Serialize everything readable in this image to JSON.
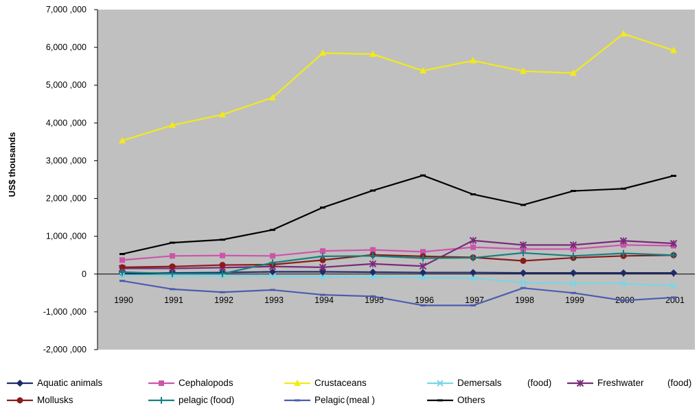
{
  "chart_data": {
    "type": "line",
    "ylabel": "US$ thousands",
    "ylim": [
      -2000000,
      7000000
    ],
    "y_ticks": [
      -2000000,
      -1000000,
      0,
      1000000,
      2000000,
      3000000,
      4000000,
      5000000,
      6000000,
      7000000
    ],
    "y_tick_labels": [
      "-2,000 ,000",
      "-1,000 ,000",
      "0",
      "1,000 ,000",
      "2,000 ,000",
      "3,000 ,000",
      "4,000 ,000",
      "5,000 ,000",
      "6,000 ,000",
      "7,000 ,000"
    ],
    "categories": [
      "1990",
      "1991",
      "1992",
      "1993",
      "1994",
      "1995",
      "1996",
      "1997",
      "1998",
      "1999",
      "2000",
      "2001"
    ],
    "grid": false,
    "plot_background": "#c0c0c0",
    "legend_position": "bottom",
    "series": [
      {
        "name": "Aquatic animals",
        "color": "#1f2a6b",
        "marker": "diamond",
        "values": [
          20000,
          30000,
          40000,
          60000,
          60000,
          50000,
          40000,
          40000,
          30000,
          30000,
          30000,
          30000
        ]
      },
      {
        "name": "Cephalopods",
        "color": "#cc55aa",
        "marker": "square",
        "values": [
          370000,
          480000,
          490000,
          480000,
          610000,
          640000,
          590000,
          710000,
          660000,
          660000,
          770000,
          750000
        ]
      },
      {
        "name": "Crustaceans",
        "color": "#f2ea1a",
        "marker": "triangle",
        "values": [
          3530000,
          3940000,
          4220000,
          4670000,
          5850000,
          5820000,
          5380000,
          5650000,
          5370000,
          5320000,
          6360000,
          5920000
        ]
      },
      {
        "name": "Demersals (food)",
        "color": "#77d6e6",
        "marker": "x",
        "values": [
          -30000,
          -50000,
          -50000,
          -60000,
          -80000,
          -80000,
          -90000,
          -110000,
          -230000,
          -250000,
          -250000,
          -310000
        ]
      },
      {
        "name": "Freshwater (food)",
        "color": "#7a2a7a",
        "marker": "star",
        "values": [
          150000,
          150000,
          170000,
          200000,
          180000,
          270000,
          210000,
          890000,
          770000,
          770000,
          880000,
          810000
        ]
      },
      {
        "name": "Mollusks",
        "color": "#8b1a1a",
        "marker": "circle",
        "values": [
          180000,
          200000,
          240000,
          250000,
          370000,
          510000,
          470000,
          440000,
          350000,
          430000,
          480000,
          500000
        ]
      },
      {
        "name": "pelagic (food)",
        "color": "#138080",
        "marker": "plus",
        "values": [
          50000,
          10000,
          10000,
          300000,
          470000,
          480000,
          420000,
          430000,
          560000,
          480000,
          550000,
          500000
        ]
      },
      {
        "name": "Pelagic (meal)",
        "color": "#4a5cb0",
        "marker": "dash",
        "values": [
          -180000,
          -400000,
          -480000,
          -420000,
          -550000,
          -590000,
          -830000,
          -830000,
          -370000,
          -500000,
          -700000,
          -620000
        ]
      },
      {
        "name": "Others",
        "color": "#000000",
        "marker": "dash",
        "values": [
          530000,
          830000,
          910000,
          1170000,
          1760000,
          2210000,
          2610000,
          2110000,
          1830000,
          2200000,
          2260000,
          2600000
        ]
      }
    ]
  },
  "legend": [
    {
      "name": "Aquatic animals",
      "suffix": ""
    },
    {
      "name": "Cephalopods",
      "suffix": ""
    },
    {
      "name": "Crustaceans",
      "suffix": ""
    },
    {
      "name": "Demersals",
      "suffix": "(food)"
    },
    {
      "name": "Freshwater",
      "suffix": "(food)"
    },
    {
      "name": "Mollusks",
      "suffix": ""
    },
    {
      "name": "pelagic",
      "suffix": "(food)"
    },
    {
      "name": "Pelagic",
      "suffix": "(meal )"
    },
    {
      "name": "Others",
      "suffix": ""
    }
  ]
}
